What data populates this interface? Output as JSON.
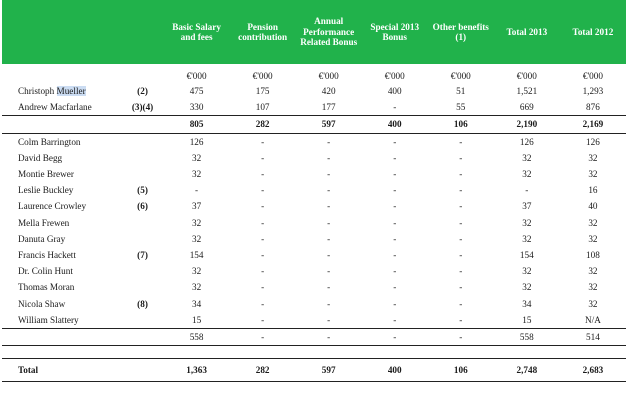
{
  "headers": [
    "Basic Salary and fees",
    "Pension contribution",
    "Annual Performance Related Bonus",
    "Special 2013 Bonus",
    "Other benefits (1)",
    "Total 2013",
    "Total 2012"
  ],
  "units": [
    "€'000",
    "€'000",
    "€'000",
    "€'000",
    "€'000",
    "€'000",
    "€'000"
  ],
  "exec_rows": [
    {
      "name_pre": "Christoph ",
      "name_hl": "Mueller",
      "note": "(2)",
      "values": [
        "475",
        "175",
        "420",
        "400",
        "51",
        "1,521",
        "1,293"
      ]
    },
    {
      "name_pre": "Andrew Macfarlane",
      "name_hl": "",
      "note": "(3)(4)",
      "values": [
        "330",
        "107",
        "177",
        "-",
        "55",
        "669",
        "876"
      ]
    }
  ],
  "exec_subtotal": [
    "805",
    "282",
    "597",
    "400",
    "106",
    "2,190",
    "2,169"
  ],
  "nonexec_rows": [
    {
      "name": "Colm Barrington",
      "note": "",
      "values": [
        "126",
        "-",
        "-",
        "-",
        "-",
        "126",
        "126"
      ]
    },
    {
      "name": "David Begg",
      "note": "",
      "values": [
        "32",
        "-",
        "-",
        "-",
        "-",
        "32",
        "32"
      ]
    },
    {
      "name": "Montie Brewer",
      "note": "",
      "values": [
        "32",
        "-",
        "-",
        "-",
        "-",
        "32",
        "32"
      ]
    },
    {
      "name": "Leslie Buckley",
      "note": "(5)",
      "values": [
        "-",
        "-",
        "-",
        "-",
        "-",
        "-",
        "16"
      ]
    },
    {
      "name": "Laurence Crowley",
      "note": "(6)",
      "values": [
        "37",
        "-",
        "-",
        "-",
        "-",
        "37",
        "40"
      ]
    },
    {
      "name": "Mella Frewen",
      "note": "",
      "values": [
        "32",
        "-",
        "-",
        "-",
        "-",
        "32",
        "32"
      ]
    },
    {
      "name": "Danuta Gray",
      "note": "",
      "values": [
        "32",
        "-",
        "-",
        "-",
        "-",
        "32",
        "32"
      ]
    },
    {
      "name": "Francis Hackett",
      "note": "(7)",
      "values": [
        "154",
        "-",
        "-",
        "-",
        "-",
        "154",
        "108"
      ]
    },
    {
      "name": "Dr. Colin Hunt",
      "note": "",
      "values": [
        "32",
        "-",
        "-",
        "-",
        "-",
        "32",
        "32"
      ]
    },
    {
      "name": "Thomas Moran",
      "note": "",
      "values": [
        "32",
        "-",
        "-",
        "-",
        "-",
        "32",
        "32"
      ]
    },
    {
      "name": "Nicola Shaw",
      "note": "(8)",
      "values": [
        "34",
        "-",
        "-",
        "-",
        "-",
        "34",
        "32"
      ]
    },
    {
      "name": "William Slattery",
      "note": "",
      "values": [
        "15",
        "-",
        "-",
        "-",
        "-",
        "15",
        "N/A"
      ]
    }
  ],
  "nonexec_subtotal": [
    "558",
    "-",
    "-",
    "-",
    "-",
    "558",
    "514"
  ],
  "total_label": "Total",
  "total_values": [
    "1,363",
    "282",
    "597",
    "400",
    "106",
    "2,748",
    "2,683"
  ],
  "colors": {
    "header_bg": "#21b24b",
    "header_text": "#ffffff",
    "highlight": "#cbdcf2"
  }
}
